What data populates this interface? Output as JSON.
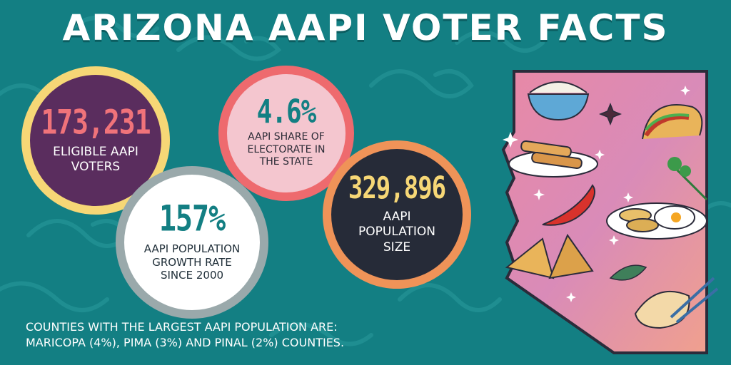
{
  "title": "ARIZONA AAPI VOTER FACTS",
  "stats": [
    {
      "value": "173,231",
      "label": "ELIGIBLE AAPI VOTERS"
    },
    {
      "value": "157%",
      "label": "AAPI POPULATION GROWTH RATE SINCE 2000"
    },
    {
      "value": "4.6%",
      "label": "AAPI SHARE OF ELECTORATE IN THE STATE"
    },
    {
      "value": "329,896",
      "label": "AAPI POPULATION SIZE"
    }
  ],
  "counties": {
    "line1": "COUNTIES WITH THE LARGEST AAPI POPULATION ARE:",
    "line2": "MARICOPA (4%), PIMA (3%) AND PINAL (2%) COUNTIES."
  },
  "colors": {
    "background": "#137f83",
    "accent_yellow": "#f6d776",
    "accent_coral": "#ee6a6e",
    "accent_orange": "#ef9358",
    "accent_purple": "#5a2d5e"
  }
}
